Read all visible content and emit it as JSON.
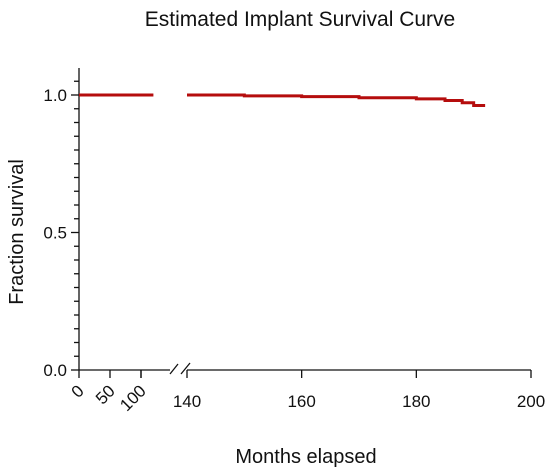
{
  "chart_data": {
    "type": "line",
    "title": "Estimated Implant Survival Curve",
    "xlabel": "Months elapsed",
    "ylabel": "Fraction survival",
    "x_axis": {
      "broken": true,
      "segments": [
        {
          "range": [
            0,
            120
          ],
          "ticks": [
            0,
            50,
            100
          ],
          "tick_labels": [
            "0",
            "50",
            "100"
          ],
          "label_rotation": "-45deg"
        },
        {
          "range": [
            140,
            200
          ],
          "ticks": [
            140,
            160,
            180,
            200
          ],
          "tick_labels": [
            "140",
            "160",
            "180",
            "200"
          ]
        }
      ]
    },
    "y_axis": {
      "range": [
        0,
        1.05
      ],
      "major_ticks": [
        0.0,
        0.5,
        1.0
      ],
      "tick_labels": [
        "0.0",
        "0.5",
        "1.0"
      ],
      "minor_tick_step": 0.05
    },
    "grid": false,
    "series": [
      {
        "color": "#b50d0d",
        "step": true,
        "points": [
          {
            "x": 0,
            "y": 1.0
          },
          {
            "x": 120,
            "y": 1.0
          },
          {
            "x": 140,
            "y": 1.0
          },
          {
            "x": 150,
            "y": 0.997
          },
          {
            "x": 160,
            "y": 0.994
          },
          {
            "x": 170,
            "y": 0.99
          },
          {
            "x": 180,
            "y": 0.986
          },
          {
            "x": 185,
            "y": 0.98
          },
          {
            "x": 188,
            "y": 0.972
          },
          {
            "x": 190,
            "y": 0.962
          },
          {
            "x": 192,
            "y": 0.962
          }
        ]
      }
    ]
  }
}
